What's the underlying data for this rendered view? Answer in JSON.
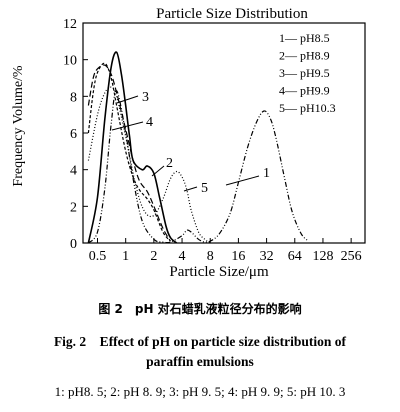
{
  "chart_data": {
    "type": "line",
    "title": "Particle Size Distribution",
    "xlabel": "Particle Size/μm",
    "ylabel": "Frequency Volume/%",
    "x_scale": "log2",
    "xlim": [
      0.35,
      360
    ],
    "ylim": [
      0,
      12
    ],
    "x_ticks": [
      "0.5",
      "1",
      "2",
      "4",
      "8",
      "16",
      "32",
      "64",
      "128",
      "256"
    ],
    "x_tick_values": [
      0.5,
      1,
      2,
      4,
      8,
      16,
      32,
      64,
      128,
      256
    ],
    "y_ticks": [
      "0",
      "2",
      "4",
      "6",
      "8",
      "10",
      "12"
    ],
    "y_tick_values": [
      0,
      2,
      4,
      6,
      8,
      10,
      12
    ],
    "legend_position": "top-right",
    "series": [
      {
        "name": "pH8.5",
        "number": "1",
        "style": "dash-dot-dot",
        "x": [
          0.4,
          0.5,
          0.6,
          0.7,
          0.8,
          1.0,
          1.2,
          1.5,
          2.0,
          2.5,
          3.0,
          4.0,
          4.5,
          5.0,
          6.0,
          7.0,
          8.0,
          10,
          13,
          16,
          20,
          25,
          30,
          35,
          40,
          50,
          60,
          75,
          90
        ],
        "y": [
          0.0,
          0.6,
          3.0,
          6.5,
          8.3,
          6.0,
          3.5,
          1.2,
          0.2,
          0.05,
          0.05,
          0.4,
          0.7,
          0.6,
          0.2,
          0.05,
          0.1,
          0.5,
          1.6,
          3.3,
          5.2,
          6.6,
          7.2,
          6.8,
          5.8,
          3.5,
          1.7,
          0.5,
          0.1
        ]
      },
      {
        "name": "pH8.9",
        "number": "2",
        "style": "solid",
        "x": [
          0.4,
          0.5,
          0.6,
          0.7,
          0.8,
          0.9,
          1.0,
          1.1,
          1.2,
          1.5,
          1.7,
          2.0,
          2.3,
          2.7,
          3.0,
          3.5
        ],
        "y": [
          0.0,
          2.5,
          6.8,
          9.6,
          10.4,
          9.2,
          7.5,
          5.8,
          4.5,
          4.0,
          4.2,
          3.8,
          2.5,
          0.9,
          0.3,
          0.0
        ]
      },
      {
        "name": "pH9.5",
        "number": "3",
        "style": "long-dash",
        "x": [
          0.4,
          0.45,
          0.5,
          0.6,
          0.7,
          0.8,
          1.0,
          1.2,
          1.4,
          1.7,
          2.0,
          2.5,
          3.0
        ],
        "y": [
          7.5,
          9.0,
          9.5,
          9.7,
          9.2,
          8.2,
          6.2,
          4.5,
          3.4,
          2.8,
          2.0,
          0.8,
          0.1
        ]
      },
      {
        "name": "pH9.9",
        "number": "4",
        "style": "short-dash",
        "x": [
          0.4,
          0.45,
          0.5,
          0.6,
          0.7,
          0.8,
          1.0,
          1.2,
          1.4,
          1.7,
          2.0,
          2.5,
          3.0
        ],
        "y": [
          6.0,
          8.2,
          9.3,
          9.8,
          9.0,
          7.5,
          5.0,
          3.6,
          2.9,
          2.4,
          1.8,
          0.6,
          0.1
        ]
      },
      {
        "name": "pH10.3",
        "number": "5",
        "style": "dotted",
        "x": [
          0.4,
          0.5,
          0.6,
          0.7,
          0.8,
          1.0,
          1.3,
          1.6,
          2.0,
          2.5,
          3.0,
          3.5,
          4.0,
          4.5,
          5.0,
          6.0,
          7.0,
          8.0
        ],
        "y": [
          4.5,
          7.0,
          8.2,
          8.5,
          8.0,
          5.8,
          3.0,
          1.7,
          1.5,
          2.4,
          3.5,
          3.9,
          3.6,
          2.9,
          1.8,
          0.6,
          0.2,
          0.0
        ]
      }
    ],
    "callouts": [
      "1",
      "2",
      "3",
      "4",
      "5"
    ]
  },
  "caption": {
    "cn": "图 2　pH 对石蜡乳液粒径分布的影响",
    "en_line1": "Fig. 2　Effect of pH on particle size distribution of",
    "en_line2": "paraffin emulsions",
    "legend_line": "1: pH8. 5;  2: pH 8. 9;  3: pH 9. 5;  4: pH 9. 9;  5: pH 10. 3"
  }
}
